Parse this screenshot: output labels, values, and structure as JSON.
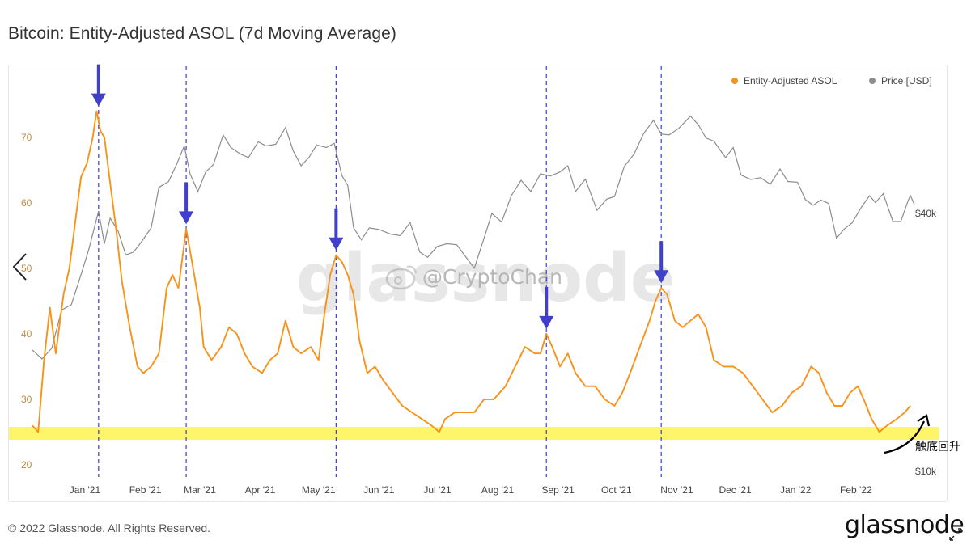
{
  "title": "Bitcoin: Entity-Adjusted ASOL (7d Moving Average)",
  "footer": "© 2022 Glassnode. All Rights Reserved.",
  "brand": "glassnode",
  "watermark": {
    "brand": "glassnode",
    "handle": "@CryptoChan"
  },
  "annotation": {
    "text": "触底回升"
  },
  "colors": {
    "asol": "#f7931a",
    "price": "#8c8c8c",
    "guide": "#3b3bd6",
    "arrow": "#4040cc",
    "band": "#fff56b"
  },
  "chart_data": {
    "type": "line",
    "title": "Bitcoin: Entity-Adjusted ASOL (7d Moving Average)",
    "legend_position": "top-right",
    "x_ticks": [
      "Jan '21",
      "Feb '21",
      "Mar '21",
      "Apr '21",
      "May '21",
      "Jun '21",
      "Jul '21",
      "Aug '21",
      "Sep '21",
      "Oct '21",
      "Nov '21",
      "Dec '21",
      "Jan '22",
      "Feb '22"
    ],
    "y_left": {
      "ticks": [
        20,
        30,
        40,
        50,
        60,
        70
      ],
      "range": [
        18.5,
        80.5
      ],
      "scale": "linear"
    },
    "y_right": {
      "ticks": [
        "$10k",
        "$40k"
      ],
      "tick_values": [
        10000,
        40000
      ],
      "scale": "log"
    },
    "highlight_band": {
      "y_range": [
        23.8,
        25.8
      ]
    },
    "peak_markers": [
      "2021-01-08",
      "2021-02-22",
      "2021-05-10",
      "2021-08-26",
      "2021-10-24"
    ],
    "series": [
      {
        "name": "Entity-Adjusted ASOL",
        "axis": "left",
        "points": [
          [
            "2020-12-05",
            26
          ],
          [
            "2020-12-08",
            25
          ],
          [
            "2020-12-11",
            36
          ],
          [
            "2020-12-14",
            44
          ],
          [
            "2020-12-17",
            37
          ],
          [
            "2020-12-21",
            46
          ],
          [
            "2020-12-24",
            50
          ],
          [
            "2020-12-27",
            57
          ],
          [
            "2020-12-30",
            64
          ],
          [
            "2021-01-02",
            66
          ],
          [
            "2021-01-05",
            70
          ],
          [
            "2021-01-07",
            74
          ],
          [
            "2021-01-09",
            71
          ],
          [
            "2021-01-11",
            70
          ],
          [
            "2021-01-14",
            63
          ],
          [
            "2021-01-17",
            56
          ],
          [
            "2021-01-20",
            48
          ],
          [
            "2021-01-24",
            41
          ],
          [
            "2021-01-28",
            35
          ],
          [
            "2021-01-31",
            34
          ],
          [
            "2021-02-04",
            35
          ],
          [
            "2021-02-08",
            37
          ],
          [
            "2021-02-12",
            47
          ],
          [
            "2021-02-15",
            49
          ],
          [
            "2021-02-18",
            47
          ],
          [
            "2021-02-22",
            56
          ],
          [
            "2021-02-25",
            51
          ],
          [
            "2021-03-01",
            44
          ],
          [
            "2021-03-03",
            38
          ],
          [
            "2021-03-07",
            36
          ],
          [
            "2021-03-12",
            38
          ],
          [
            "2021-03-16",
            41
          ],
          [
            "2021-03-20",
            40
          ],
          [
            "2021-03-24",
            37
          ],
          [
            "2021-03-28",
            35
          ],
          [
            "2021-04-02",
            34
          ],
          [
            "2021-04-06",
            36
          ],
          [
            "2021-04-10",
            37
          ],
          [
            "2021-04-14",
            42
          ],
          [
            "2021-04-18",
            38
          ],
          [
            "2021-04-22",
            37
          ],
          [
            "2021-04-27",
            38
          ],
          [
            "2021-05-01",
            36
          ],
          [
            "2021-05-04",
            43
          ],
          [
            "2021-05-07",
            49
          ],
          [
            "2021-05-10",
            52
          ],
          [
            "2021-05-13",
            51
          ],
          [
            "2021-05-16",
            49
          ],
          [
            "2021-05-19",
            46
          ],
          [
            "2021-05-22",
            39
          ],
          [
            "2021-05-26",
            34
          ],
          [
            "2021-05-30",
            35
          ],
          [
            "2021-06-03",
            33
          ],
          [
            "2021-06-08",
            31
          ],
          [
            "2021-06-13",
            29
          ],
          [
            "2021-06-18",
            28
          ],
          [
            "2021-06-23",
            27
          ],
          [
            "2021-06-28",
            26
          ],
          [
            "2021-07-02",
            25
          ],
          [
            "2021-07-05",
            27
          ],
          [
            "2021-07-10",
            28
          ],
          [
            "2021-07-15",
            28
          ],
          [
            "2021-07-20",
            28
          ],
          [
            "2021-07-25",
            30
          ],
          [
            "2021-07-30",
            30
          ],
          [
            "2021-08-05",
            32
          ],
          [
            "2021-08-10",
            35
          ],
          [
            "2021-08-15",
            38
          ],
          [
            "2021-08-20",
            37
          ],
          [
            "2021-08-23",
            37
          ],
          [
            "2021-08-26",
            40
          ],
          [
            "2021-08-29",
            38
          ],
          [
            "2021-09-02",
            35
          ],
          [
            "2021-09-06",
            37
          ],
          [
            "2021-09-10",
            34
          ],
          [
            "2021-09-15",
            32
          ],
          [
            "2021-09-20",
            32
          ],
          [
            "2021-09-25",
            30
          ],
          [
            "2021-09-30",
            29
          ],
          [
            "2021-10-04",
            31
          ],
          [
            "2021-10-08",
            34
          ],
          [
            "2021-10-13",
            38
          ],
          [
            "2021-10-18",
            42
          ],
          [
            "2021-10-21",
            45
          ],
          [
            "2021-10-24",
            47
          ],
          [
            "2021-10-27",
            46
          ],
          [
            "2021-10-31",
            42
          ],
          [
            "2021-11-04",
            41
          ],
          [
            "2021-11-08",
            42
          ],
          [
            "2021-11-12",
            43
          ],
          [
            "2021-11-16",
            41
          ],
          [
            "2021-11-20",
            36
          ],
          [
            "2021-11-25",
            35
          ],
          [
            "2021-11-30",
            35
          ],
          [
            "2021-12-05",
            34
          ],
          [
            "2021-12-10",
            32
          ],
          [
            "2021-12-15",
            30
          ],
          [
            "2021-12-20",
            28
          ],
          [
            "2021-12-25",
            29
          ],
          [
            "2021-12-30",
            31
          ],
          [
            "2022-01-04",
            32
          ],
          [
            "2022-01-09",
            35
          ],
          [
            "2022-01-13",
            34
          ],
          [
            "2022-01-17",
            31
          ],
          [
            "2022-01-21",
            29
          ],
          [
            "2022-01-25",
            29
          ],
          [
            "2022-01-29",
            31
          ],
          [
            "2022-02-02",
            32
          ],
          [
            "2022-02-05",
            30
          ],
          [
            "2022-02-09",
            27
          ],
          [
            "2022-02-13",
            25
          ],
          [
            "2022-02-17",
            26
          ],
          [
            "2022-02-22",
            27
          ],
          [
            "2022-02-26",
            28
          ],
          [
            "2022-03-01",
            29
          ]
        ]
      },
      {
        "name": "Price [USD]",
        "axis": "right",
        "points": [
          [
            "2020-12-05",
            19200
          ],
          [
            "2020-12-10",
            18300
          ],
          [
            "2020-12-15",
            19400
          ],
          [
            "2020-12-20",
            23800
          ],
          [
            "2020-12-25",
            24500
          ],
          [
            "2020-12-30",
            28800
          ],
          [
            "2021-01-03",
            33000
          ],
          [
            "2021-01-08",
            40500
          ],
          [
            "2021-01-11",
            34000
          ],
          [
            "2021-01-14",
            39000
          ],
          [
            "2021-01-18",
            36400
          ],
          [
            "2021-01-22",
            32000
          ],
          [
            "2021-01-26",
            32500
          ],
          [
            "2021-01-30",
            34300
          ],
          [
            "2021-02-04",
            37000
          ],
          [
            "2021-02-08",
            46000
          ],
          [
            "2021-02-13",
            47500
          ],
          [
            "2021-02-17",
            52000
          ],
          [
            "2021-02-21",
            57500
          ],
          [
            "2021-02-24",
            49500
          ],
          [
            "2021-02-28",
            45000
          ],
          [
            "2021-03-04",
            50000
          ],
          [
            "2021-03-08",
            52000
          ],
          [
            "2021-03-13",
            61000
          ],
          [
            "2021-03-17",
            57000
          ],
          [
            "2021-03-22",
            55000
          ],
          [
            "2021-03-26",
            54000
          ],
          [
            "2021-03-31",
            58800
          ],
          [
            "2021-04-04",
            57500
          ],
          [
            "2021-04-09",
            58000
          ],
          [
            "2021-04-14",
            63500
          ],
          [
            "2021-04-18",
            56000
          ],
          [
            "2021-04-22",
            51700
          ],
          [
            "2021-04-26",
            54000
          ],
          [
            "2021-04-30",
            57800
          ],
          [
            "2021-05-05",
            57000
          ],
          [
            "2021-05-09",
            58300
          ],
          [
            "2021-05-13",
            49000
          ],
          [
            "2021-05-16",
            46500
          ],
          [
            "2021-05-19",
            37000
          ],
          [
            "2021-05-23",
            34700
          ],
          [
            "2021-05-27",
            37000
          ],
          [
            "2021-06-01",
            36700
          ],
          [
            "2021-06-07",
            35800
          ],
          [
            "2021-06-12",
            35500
          ],
          [
            "2021-06-17",
            38100
          ],
          [
            "2021-06-22",
            32500
          ],
          [
            "2021-06-26",
            31600
          ],
          [
            "2021-07-01",
            33500
          ],
          [
            "2021-07-06",
            34000
          ],
          [
            "2021-07-11",
            33800
          ],
          [
            "2021-07-16",
            31500
          ],
          [
            "2021-07-20",
            29800
          ],
          [
            "2021-07-25",
            35000
          ],
          [
            "2021-07-29",
            40000
          ],
          [
            "2021-08-03",
            38200
          ],
          [
            "2021-08-08",
            44000
          ],
          [
            "2021-08-13",
            47800
          ],
          [
            "2021-08-18",
            45000
          ],
          [
            "2021-08-23",
            49500
          ],
          [
            "2021-08-28",
            48900
          ],
          [
            "2021-09-02",
            50000
          ],
          [
            "2021-09-06",
            51700
          ],
          [
            "2021-09-10",
            45000
          ],
          [
            "2021-09-15",
            48100
          ],
          [
            "2021-09-21",
            40700
          ],
          [
            "2021-09-26",
            43200
          ],
          [
            "2021-09-30",
            43800
          ],
          [
            "2021-10-05",
            51500
          ],
          [
            "2021-10-10",
            55000
          ],
          [
            "2021-10-15",
            61500
          ],
          [
            "2021-10-20",
            66000
          ],
          [
            "2021-10-24",
            61300
          ],
          [
            "2021-10-28",
            61000
          ],
          [
            "2021-11-02",
            63200
          ],
          [
            "2021-11-08",
            67500
          ],
          [
            "2021-11-12",
            64500
          ],
          [
            "2021-11-16",
            60000
          ],
          [
            "2021-11-20",
            59000
          ],
          [
            "2021-11-26",
            54000
          ],
          [
            "2021-11-30",
            57000
          ],
          [
            "2021-12-04",
            49200
          ],
          [
            "2021-12-09",
            48000
          ],
          [
            "2021-12-14",
            48500
          ],
          [
            "2021-12-19",
            46800
          ],
          [
            "2021-12-24",
            50800
          ],
          [
            "2021-12-28",
            47500
          ],
          [
            "2022-01-02",
            47300
          ],
          [
            "2022-01-06",
            43100
          ],
          [
            "2022-01-10",
            41800
          ],
          [
            "2022-01-14",
            43000
          ],
          [
            "2022-01-18",
            42200
          ],
          [
            "2022-01-22",
            35000
          ],
          [
            "2022-01-26",
            36800
          ],
          [
            "2022-01-30",
            38000
          ],
          [
            "2022-02-04",
            41500
          ],
          [
            "2022-02-08",
            44000
          ],
          [
            "2022-02-11",
            42400
          ],
          [
            "2022-02-15",
            44500
          ],
          [
            "2022-02-20",
            38300
          ],
          [
            "2022-02-24",
            38300
          ],
          [
            "2022-02-28",
            43100
          ],
          [
            "2022-03-01",
            44000
          ],
          [
            "2022-03-03",
            42000
          ]
        ]
      }
    ]
  }
}
